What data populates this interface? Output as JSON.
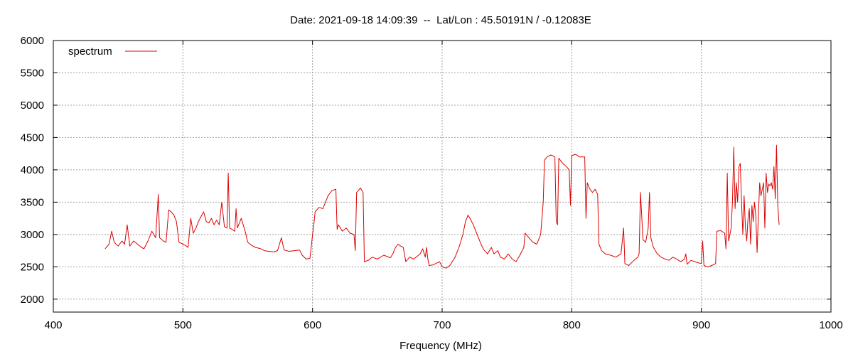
{
  "chart_data": {
    "type": "line",
    "title": "Date: 2021-09-18 14:09:39  --  Lat/Lon : 45.50191N / -0.12083E",
    "xlabel": "Frequency (MHz)",
    "ylabel": "",
    "xlim": [
      400,
      1000
    ],
    "ylim": [
      1800,
      6000
    ],
    "x_ticks": [
      400,
      500,
      600,
      700,
      800,
      900,
      1000
    ],
    "y_ticks": [
      2000,
      2500,
      3000,
      3500,
      4000,
      4500,
      5000,
      5500,
      6000
    ],
    "grid": true,
    "legend_position": "top-left",
    "series": [
      {
        "name": "spectrum",
        "color": "#dd0000",
        "points": [
          [
            440,
            2780
          ],
          [
            443,
            2850
          ],
          [
            445,
            3050
          ],
          [
            447,
            2880
          ],
          [
            450,
            2820
          ],
          [
            453,
            2900
          ],
          [
            455,
            2850
          ],
          [
            457,
            3150
          ],
          [
            459,
            2820
          ],
          [
            462,
            2900
          ],
          [
            465,
            2850
          ],
          [
            468,
            2800
          ],
          [
            470,
            2780
          ],
          [
            473,
            2900
          ],
          [
            476,
            3050
          ],
          [
            479,
            2950
          ],
          [
            481,
            3620
          ],
          [
            482,
            2950
          ],
          [
            485,
            2900
          ],
          [
            487,
            2880
          ],
          [
            489,
            3380
          ],
          [
            491,
            3350
          ],
          [
            493,
            3300
          ],
          [
            495,
            3200
          ],
          [
            497,
            2880
          ],
          [
            500,
            2850
          ],
          [
            502,
            2830
          ],
          [
            504,
            2800
          ],
          [
            506,
            3250
          ],
          [
            508,
            3020
          ],
          [
            510,
            3100
          ],
          [
            512,
            3200
          ],
          [
            514,
            3280
          ],
          [
            516,
            3350
          ],
          [
            518,
            3200
          ],
          [
            520,
            3180
          ],
          [
            522,
            3250
          ],
          [
            524,
            3150
          ],
          [
            526,
            3220
          ],
          [
            528,
            3150
          ],
          [
            530,
            3500
          ],
          [
            532,
            3120
          ],
          [
            534,
            3100
          ],
          [
            535,
            3950
          ],
          [
            536,
            3100
          ],
          [
            538,
            3080
          ],
          [
            540,
            3050
          ],
          [
            541,
            3400
          ],
          [
            542,
            3100
          ],
          [
            545,
            3250
          ],
          [
            548,
            3050
          ],
          [
            550,
            2880
          ],
          [
            553,
            2830
          ],
          [
            556,
            2800
          ],
          [
            560,
            2780
          ],
          [
            563,
            2750
          ],
          [
            566,
            2740
          ],
          [
            570,
            2730
          ],
          [
            573,
            2750
          ],
          [
            576,
            2950
          ],
          [
            578,
            2760
          ],
          [
            582,
            2740
          ],
          [
            586,
            2750
          ],
          [
            590,
            2760
          ],
          [
            592,
            2680
          ],
          [
            595,
            2620
          ],
          [
            598,
            2630
          ],
          [
            599,
            2800
          ],
          [
            600,
            3000
          ],
          [
            601,
            3150
          ],
          [
            602,
            3350
          ],
          [
            605,
            3420
          ],
          [
            608,
            3400
          ],
          [
            610,
            3500
          ],
          [
            612,
            3600
          ],
          [
            615,
            3680
          ],
          [
            618,
            3700
          ],
          [
            619,
            3080
          ],
          [
            620,
            3150
          ],
          [
            623,
            3050
          ],
          [
            626,
            3100
          ],
          [
            629,
            3020
          ],
          [
            632,
            3000
          ],
          [
            633,
            2750
          ],
          [
            634,
            3650
          ],
          [
            637,
            3720
          ],
          [
            639,
            3650
          ],
          [
            640,
            2580
          ],
          [
            643,
            2600
          ],
          [
            646,
            2650
          ],
          [
            650,
            2620
          ],
          [
            655,
            2680
          ],
          [
            660,
            2640
          ],
          [
            662,
            2700
          ],
          [
            664,
            2800
          ],
          [
            666,
            2850
          ],
          [
            668,
            2820
          ],
          [
            670,
            2800
          ],
          [
            672,
            2580
          ],
          [
            675,
            2650
          ],
          [
            678,
            2620
          ],
          [
            680,
            2650
          ],
          [
            683,
            2700
          ],
          [
            685,
            2780
          ],
          [
            687,
            2650
          ],
          [
            688,
            2800
          ],
          [
            689,
            2620
          ],
          [
            690,
            2520
          ],
          [
            693,
            2530
          ],
          [
            695,
            2550
          ],
          [
            698,
            2580
          ],
          [
            700,
            2500
          ],
          [
            703,
            2480
          ],
          [
            706,
            2520
          ],
          [
            710,
            2650
          ],
          [
            713,
            2800
          ],
          [
            716,
            3000
          ],
          [
            718,
            3200
          ],
          [
            720,
            3300
          ],
          [
            722,
            3230
          ],
          [
            724,
            3150
          ],
          [
            726,
            3050
          ],
          [
            728,
            2950
          ],
          [
            730,
            2850
          ],
          [
            732,
            2770
          ],
          [
            735,
            2700
          ],
          [
            738,
            2800
          ],
          [
            740,
            2700
          ],
          [
            743,
            2750
          ],
          [
            745,
            2650
          ],
          [
            748,
            2620
          ],
          [
            751,
            2700
          ],
          [
            754,
            2620
          ],
          [
            757,
            2580
          ],
          [
            760,
            2680
          ],
          [
            763,
            2800
          ],
          [
            764,
            3020
          ],
          [
            767,
            2950
          ],
          [
            770,
            2880
          ],
          [
            773,
            2850
          ],
          [
            776,
            3000
          ],
          [
            778,
            3500
          ],
          [
            779,
            4150
          ],
          [
            781,
            4200
          ],
          [
            784,
            4230
          ],
          [
            787,
            4200
          ],
          [
            788,
            3200
          ],
          [
            789,
            3150
          ],
          [
            790,
            4180
          ],
          [
            793,
            4100
          ],
          [
            796,
            4050
          ],
          [
            798,
            4000
          ],
          [
            799,
            3450
          ],
          [
            800,
            4220
          ],
          [
            803,
            4240
          ],
          [
            806,
            4200
          ],
          [
            810,
            4200
          ],
          [
            811,
            3250
          ],
          [
            812,
            3800
          ],
          [
            814,
            3700
          ],
          [
            816,
            3650
          ],
          [
            818,
            3700
          ],
          [
            820,
            3620
          ],
          [
            821,
            2850
          ],
          [
            823,
            2750
          ],
          [
            826,
            2700
          ],
          [
            830,
            2680
          ],
          [
            834,
            2650
          ],
          [
            838,
            2700
          ],
          [
            840,
            3100
          ],
          [
            841,
            2550
          ],
          [
            844,
            2520
          ],
          [
            848,
            2600
          ],
          [
            851,
            2650
          ],
          [
            852,
            2700
          ],
          [
            853,
            3650
          ],
          [
            855,
            2920
          ],
          [
            857,
            2880
          ],
          [
            859,
            3100
          ],
          [
            860,
            3650
          ],
          [
            861,
            2950
          ],
          [
            863,
            2800
          ],
          [
            866,
            2700
          ],
          [
            869,
            2650
          ],
          [
            872,
            2620
          ],
          [
            875,
            2600
          ],
          [
            878,
            2650
          ],
          [
            881,
            2620
          ],
          [
            884,
            2580
          ],
          [
            887,
            2620
          ],
          [
            888,
            2700
          ],
          [
            889,
            2540
          ],
          [
            892,
            2600
          ],
          [
            895,
            2580
          ],
          [
            898,
            2560
          ],
          [
            900,
            2550
          ],
          [
            901,
            2900
          ],
          [
            902,
            2520
          ],
          [
            905,
            2500
          ],
          [
            908,
            2520
          ],
          [
            911,
            2550
          ],
          [
            912,
            3050
          ],
          [
            915,
            3060
          ],
          [
            918,
            3020
          ],
          [
            919,
            2780
          ],
          [
            920,
            3950
          ],
          [
            921,
            2900
          ],
          [
            923,
            3100
          ],
          [
            924,
            3500
          ],
          [
            925,
            4350
          ],
          [
            926,
            3400
          ],
          [
            927,
            3800
          ],
          [
            928,
            3500
          ],
          [
            929,
            4050
          ],
          [
            930,
            4100
          ],
          [
            931,
            3500
          ],
          [
            932,
            3000
          ],
          [
            933,
            3600
          ],
          [
            934,
            3100
          ],
          [
            935,
            2900
          ],
          [
            936,
            3250
          ],
          [
            937,
            3400
          ],
          [
            938,
            2850
          ],
          [
            939,
            3450
          ],
          [
            940,
            3200
          ],
          [
            941,
            3500
          ],
          [
            942,
            3300
          ],
          [
            943,
            2720
          ],
          [
            944,
            3300
          ],
          [
            945,
            3800
          ],
          [
            946,
            3600
          ],
          [
            947,
            3700
          ],
          [
            948,
            3800
          ],
          [
            949,
            3100
          ],
          [
            950,
            3950
          ],
          [
            951,
            3650
          ],
          [
            952,
            3780
          ],
          [
            953,
            3750
          ],
          [
            954,
            3800
          ],
          [
            955,
            3700
          ],
          [
            956,
            4050
          ],
          [
            957,
            3550
          ],
          [
            958,
            4380
          ],
          [
            959,
            3450
          ],
          [
            960,
            3150
          ]
        ]
      }
    ]
  }
}
